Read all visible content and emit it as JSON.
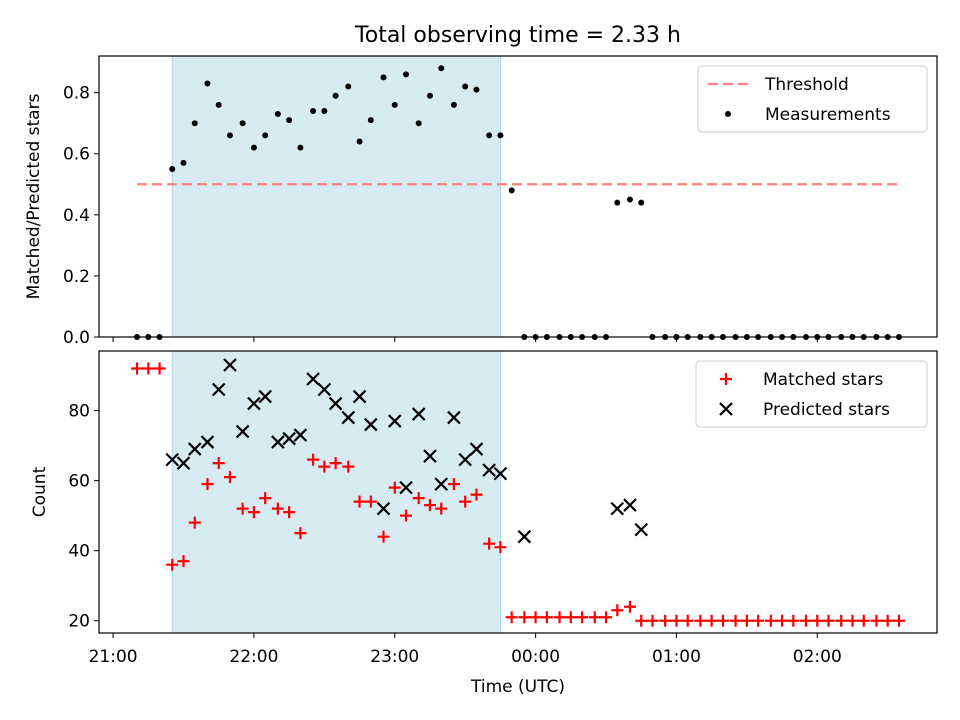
{
  "chart_data": {
    "type": "scatter",
    "title": "Total observing time = 2.33 h",
    "xlabel": "Time (UTC)",
    "x_ticks": [
      "21:00",
      "22:00",
      "23:00",
      "00:00",
      "01:00",
      "02:00"
    ],
    "x_tick_hours": [
      21,
      22,
      23,
      24,
      25,
      26
    ],
    "xlim_hours": [
      20.9,
      26.85
    ],
    "shaded_interval_hours": [
      21.42,
      23.75
    ],
    "colors": {
      "shade": "#add8e6",
      "threshold": "#ff7f7f",
      "matched": "#ff0000",
      "predicted": "#000000",
      "measure": "#000000"
    },
    "panels": [
      {
        "ylabel": "Matched/Predicted stars",
        "ylim": [
          0,
          0.92
        ],
        "y_ticks": [
          "0.0",
          "0.2",
          "0.4",
          "0.6",
          "0.8"
        ],
        "y_tick_values": [
          0,
          0.2,
          0.4,
          0.6,
          0.8
        ],
        "legend": {
          "placement": "upper right",
          "entries": [
            "Threshold",
            "Measurements"
          ]
        },
        "threshold": {
          "name": "Threshold",
          "value": 0.5,
          "x_range": [
            21.17,
            26.58
          ]
        },
        "series": [
          {
            "name": "Measurements",
            "marker": "dot",
            "x": [
              21.17,
              21.25,
              21.33,
              21.42,
              21.5,
              21.58,
              21.67,
              21.75,
              21.83,
              21.92,
              22.0,
              22.08,
              22.17,
              22.25,
              22.33,
              22.42,
              22.5,
              22.58,
              22.67,
              22.75,
              22.83,
              22.92,
              23.0,
              23.08,
              23.17,
              23.25,
              23.33,
              23.42,
              23.5,
              23.58,
              23.67,
              23.75,
              23.83,
              23.92,
              24.0,
              24.08,
              24.17,
              24.25,
              24.33,
              24.42,
              24.5,
              24.58,
              24.67,
              24.75,
              24.83,
              24.92,
              25.0,
              25.08,
              25.17,
              25.25,
              25.33,
              25.42,
              25.5,
              25.58,
              25.67,
              25.75,
              25.83,
              25.92,
              26.0,
              26.08,
              26.17,
              26.25,
              26.33,
              26.42,
              26.5,
              26.58
            ],
            "y": [
              0,
              0,
              0,
              0.55,
              0.57,
              0.7,
              0.83,
              0.76,
              0.66,
              0.7,
              0.62,
              0.66,
              0.73,
              0.71,
              0.62,
              0.74,
              0.74,
              0.79,
              0.82,
              0.64,
              0.71,
              0.85,
              0.76,
              0.86,
              0.7,
              0.79,
              0.88,
              0.76,
              0.82,
              0.81,
              0.66,
              0.66,
              0.48,
              0,
              0,
              0,
              0,
              0,
              0,
              0,
              0,
              0.44,
              0.45,
              0.44,
              0,
              0,
              0,
              0,
              0,
              0,
              0,
              0,
              0,
              0,
              0,
              0,
              0,
              0,
              0,
              0,
              0,
              0,
              0,
              0,
              0,
              0
            ]
          }
        ]
      },
      {
        "ylabel": "Count",
        "ylim": [
          16.5,
          97
        ],
        "y_ticks": [
          "20",
          "40",
          "60",
          "80"
        ],
        "y_tick_values": [
          20,
          40,
          60,
          80
        ],
        "legend": {
          "placement": "upper right",
          "entries": [
            "Matched stars",
            "Predicted stars"
          ]
        },
        "series": [
          {
            "name": "Matched stars",
            "marker": "plus",
            "x": [
              21.17,
              21.25,
              21.33,
              21.42,
              21.5,
              21.58,
              21.67,
              21.75,
              21.83,
              21.92,
              22.0,
              22.08,
              22.17,
              22.25,
              22.33,
              22.42,
              22.5,
              22.58,
              22.67,
              22.75,
              22.83,
              22.92,
              23.0,
              23.08,
              23.17,
              23.25,
              23.33,
              23.42,
              23.5,
              23.58,
              23.67,
              23.75,
              23.83,
              23.92,
              24.0,
              24.08,
              24.17,
              24.25,
              24.33,
              24.42,
              24.5,
              24.58,
              24.67,
              24.75,
              24.83,
              24.92,
              25.0,
              25.08,
              25.17,
              25.25,
              25.33,
              25.42,
              25.5,
              25.58,
              25.67,
              25.75,
              25.83,
              25.92,
              26.0,
              26.08,
              26.17,
              26.25,
              26.33,
              26.42,
              26.5,
              26.58
            ],
            "y": [
              92,
              92,
              92,
              36,
              37,
              48,
              59,
              65,
              61,
              52,
              51,
              55,
              52,
              51,
              45,
              66,
              64,
              65,
              64,
              54,
              54,
              44,
              58,
              50,
              55,
              53,
              52,
              59,
              54,
              56,
              42,
              41,
              21,
              21,
              21,
              21,
              21,
              21,
              21,
              21,
              21,
              23,
              24,
              20,
              20,
              20,
              20,
              20,
              20,
              20,
              20,
              20,
              20,
              20,
              20,
              20,
              20,
              20,
              20,
              20,
              20,
              20,
              20,
              20,
              20,
              20
            ]
          },
          {
            "name": "Predicted stars",
            "marker": "x",
            "x": [
              21.42,
              21.5,
              21.58,
              21.67,
              21.75,
              21.83,
              21.92,
              22.0,
              22.08,
              22.17,
              22.25,
              22.33,
              22.42,
              22.5,
              22.58,
              22.67,
              22.75,
              22.83,
              22.92,
              23.0,
              23.08,
              23.17,
              23.25,
              23.33,
              23.42,
              23.5,
              23.58,
              23.67,
              23.75,
              23.92,
              24.58,
              24.67,
              24.75
            ],
            "y": [
              66,
              65,
              69,
              71,
              86,
              93,
              74,
              82,
              84,
              71,
              72,
              73,
              89,
              86,
              82,
              78,
              84,
              76,
              52,
              77,
              58,
              79,
              67,
              59,
              78,
              66,
              69,
              63,
              62,
              44,
              52,
              53,
              46
            ]
          }
        ]
      }
    ]
  }
}
